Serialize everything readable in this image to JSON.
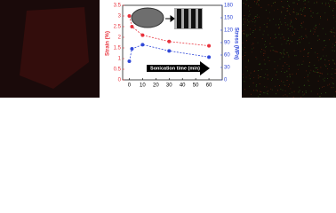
{
  "chart_data": {
    "type": "line",
    "x_label": "Sonication time (min)",
    "y_label": "Strain (%)",
    "y2_label": "Stress (MPa)",
    "x": [
      0,
      2,
      10,
      30,
      60
    ],
    "series": [
      {
        "name": "Strain",
        "color": "#e8323c",
        "values": [
          3.0,
          2.5,
          2.1,
          1.8,
          1.6
        ]
      },
      {
        "name": "Stress",
        "color": "#3048d8",
        "axis": "y2",
        "values": [
          45,
          75,
          85,
          70,
          55
        ]
      }
    ],
    "xlim": [
      -5,
      70
    ],
    "xticks": [
      0,
      10,
      20,
      30,
      40,
      50,
      60
    ],
    "ylim": [
      0,
      3.5
    ],
    "yticks": [
      0,
      0.5,
      1,
      1.5,
      2,
      2.5,
      3,
      3.5
    ],
    "y2lim": [
      0,
      180
    ],
    "y2ticks": [
      0,
      30,
      60,
      90,
      120,
      150,
      180
    ]
  }
}
